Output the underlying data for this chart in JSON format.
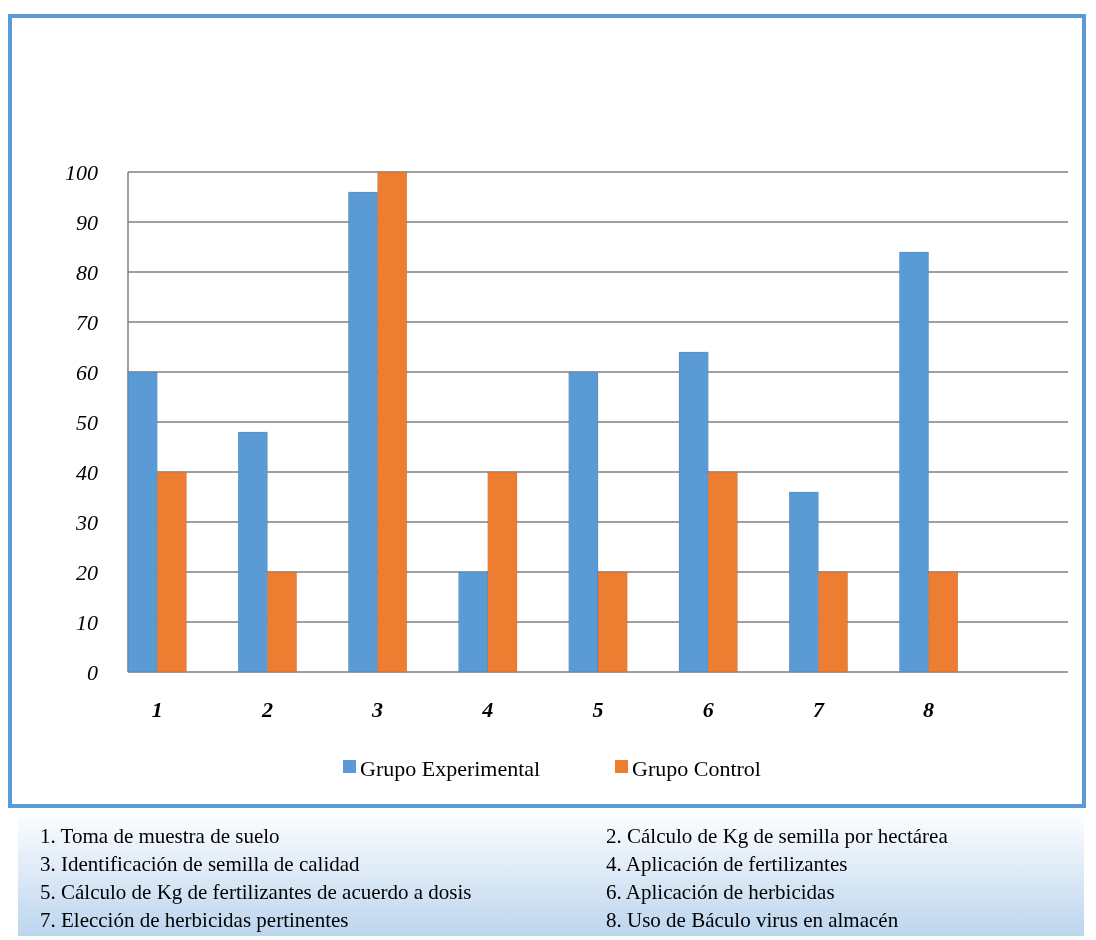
{
  "chart_data": {
    "type": "bar",
    "categories": [
      "1",
      "2",
      "3",
      "4",
      "5",
      "6",
      "7",
      "8",
      null
    ],
    "series": [
      {
        "name": "Grupo Experimental",
        "color": "#5b9bd5",
        "values": [
          60,
          48,
          96,
          20,
          60,
          64,
          36,
          84,
          null
        ]
      },
      {
        "name": "Grupo Control",
        "color": "#ed7d31",
        "values": [
          40,
          20,
          100,
          40,
          20,
          40,
          20,
          20,
          null
        ]
      }
    ],
    "ylim": [
      0,
      100
    ],
    "yticks": [
      0,
      10,
      20,
      30,
      40,
      50,
      60,
      70,
      80,
      90,
      100
    ],
    "grid": "y",
    "legend": "bottom",
    "annotations": [
      "1. Toma de muestra de suelo",
      "2.  Cálculo de  Kg de semilla por hectárea",
      "3. Identificación de  semilla de calidad",
      "4.   Aplicación de fertilizantes",
      "5. Cálculo de Kg de fertilizantes de acuerdo a dosis",
      "6.   Aplicación de herbicidas",
      "7. Elección de herbicidas pertinentes",
      "8.   Uso de Báculo virus  en almacén"
    ]
  }
}
